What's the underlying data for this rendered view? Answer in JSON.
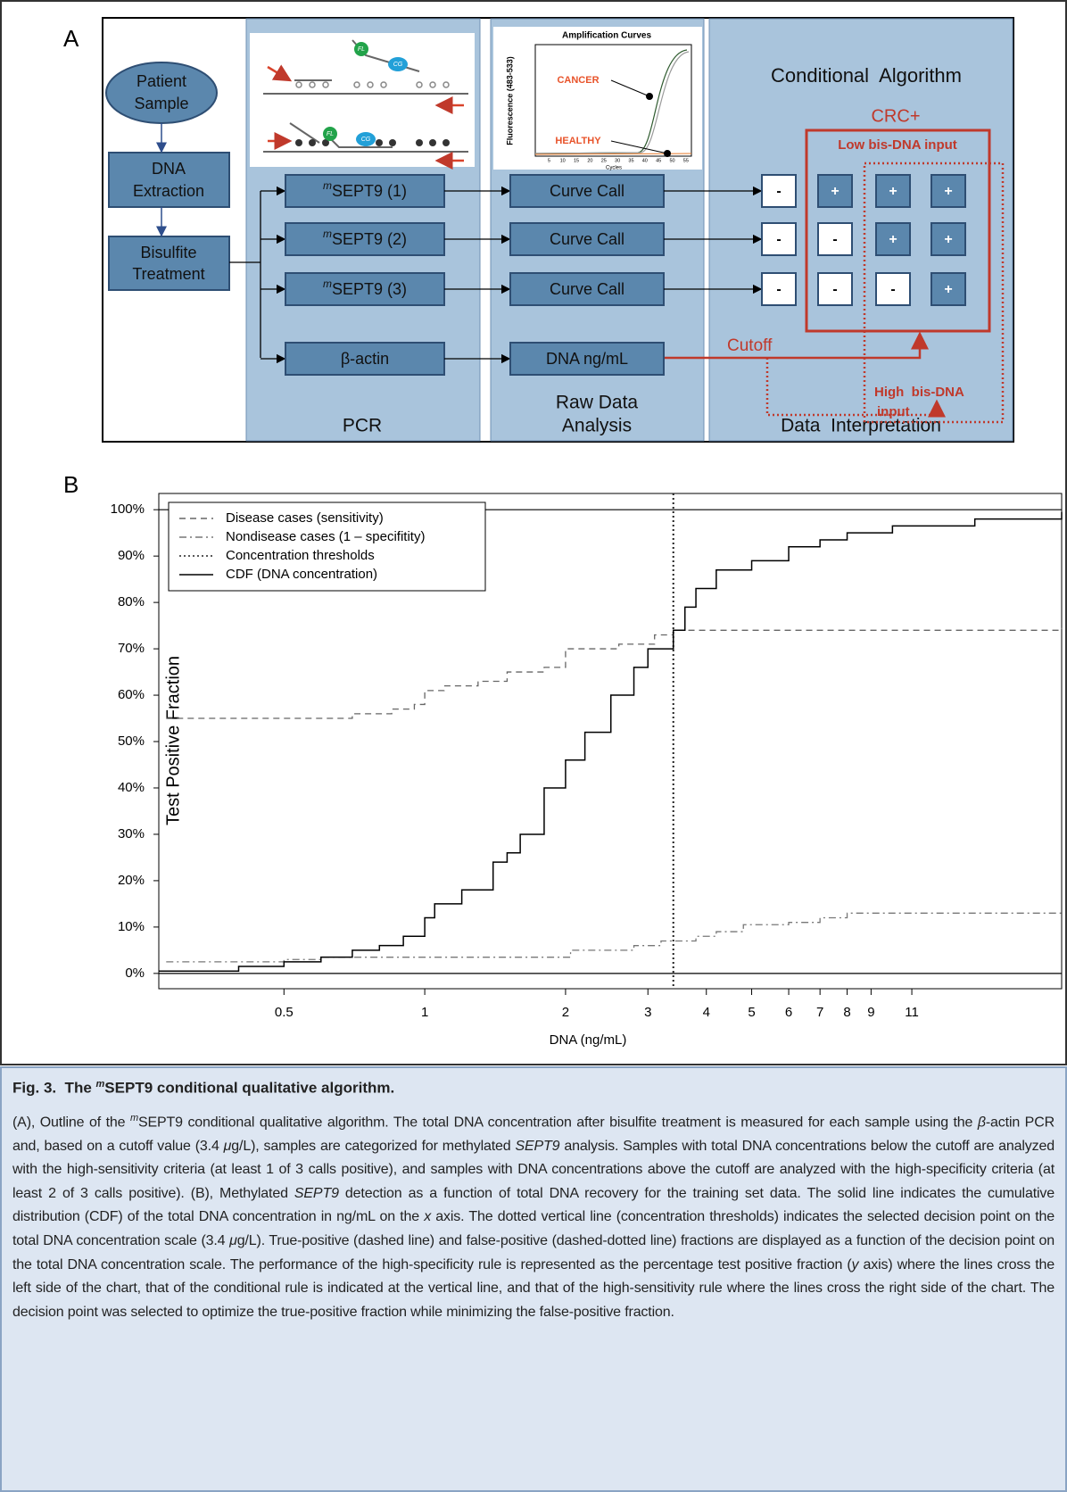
{
  "panel_a": {
    "label": "A",
    "patient": [
      "Patient",
      "Sample"
    ],
    "extraction": [
      "DNA",
      "Extraction"
    ],
    "bisulfite": [
      "Bisulfite",
      "Treatment"
    ],
    "assays": [
      {
        "prefix": "m",
        "name": "SEPT9 (1)"
      },
      {
        "prefix": "m",
        "name": "SEPT9 (2)"
      },
      {
        "prefix": "m",
        "name": "SEPT9 (3)"
      },
      {
        "prefix": "",
        "name": "β-actin"
      }
    ],
    "analyses": [
      "Curve Call",
      "Curve Call",
      "Curve Call",
      "DNA ng/mL"
    ],
    "cutoff": "Cutoff",
    "columns": {
      "pcr": [
        "PCR"
      ],
      "raw": [
        "Raw Data",
        "Analysis"
      ],
      "interp": [
        "Data  Interpretation"
      ]
    },
    "algorithm_title": "Conditional  Algorithm",
    "crc": "CRC+",
    "low_input": "Low bis-DNA input",
    "high_input": [
      "High  bis-DNA",
      "input"
    ],
    "grid": [
      [
        "-",
        "+",
        "+",
        "+"
      ],
      [
        "-",
        "-",
        "+",
        "+"
      ],
      [
        "-",
        "-",
        "-",
        "+"
      ]
    ],
    "probe_labels": [
      "FL",
      "CG",
      "FL",
      "CG"
    ],
    "amp_inset": {
      "title": "Amplification Curves",
      "ylabel": "Fluorescence (483-533)",
      "xlabel": "Cycles",
      "cancer": "CANCER",
      "healthy": "HEALTHY",
      "xticks": [
        5,
        10,
        15,
        20,
        25,
        30,
        35,
        40,
        45,
        50,
        55
      ]
    }
  },
  "chart_data": {
    "type": "line",
    "label": "B",
    "xlabel": "DNA (ng/mL)",
    "ylabel": "Test Positive Fraction",
    "xscale": "log",
    "xlim": [
      0.27,
      23
    ],
    "ylim": [
      -3.3,
      103.5
    ],
    "xticks": [
      0.5,
      1,
      2,
      3,
      4,
      5,
      6,
      7,
      8,
      9,
      11
    ],
    "yticks": [
      {
        "value": 0,
        "label": "0%"
      },
      {
        "value": 10,
        "label": "10%"
      },
      {
        "value": 20,
        "label": "20%"
      },
      {
        "value": 30,
        "label": "30%"
      },
      {
        "value": 40,
        "label": "40%"
      },
      {
        "value": 50,
        "label": "50%"
      },
      {
        "value": 60,
        "label": "60%"
      },
      {
        "value": 70,
        "label": "70%"
      },
      {
        "value": 80,
        "label": "80%"
      },
      {
        "value": 90,
        "label": "90%"
      },
      {
        "value": 100,
        "label": "100%"
      }
    ],
    "hlines": [
      0,
      100
    ],
    "threshold": {
      "name": "Concentration thresholds",
      "x": 3.4,
      "color": "#222222",
      "style": "dotted"
    },
    "legend": "upper left",
    "series": [
      {
        "name": "Disease cases (sensitivity)",
        "color": "#666666",
        "style": "dashed",
        "x": [
          0.28,
          0.7,
          0.85,
          0.95,
          1.0,
          1.1,
          1.3,
          1.5,
          1.8,
          2.0,
          2.6,
          3.1,
          3.4,
          23
        ],
        "values": [
          55,
          56,
          57,
          58,
          61,
          62,
          63,
          65,
          66,
          70,
          71,
          73,
          74,
          74.5
        ]
      },
      {
        "name": "Nondisease cases (1 – specifitity)",
        "color": "#777777",
        "style": "dashdot",
        "x": [
          0.28,
          0.5,
          0.6,
          2.0,
          2.05,
          2.8,
          3.2,
          3.8,
          4.2,
          4.8,
          6,
          7,
          8,
          23
        ],
        "values": [
          2.5,
          3,
          3.5,
          3.5,
          5,
          6,
          7,
          8,
          9,
          10.5,
          11,
          12,
          13,
          13.5
        ]
      },
      {
        "name": "CDF (DNA concentration)",
        "color": "#000000",
        "style": "solid",
        "x": [
          0.27,
          0.4,
          0.5,
          0.6,
          0.7,
          0.8,
          0.9,
          1.0,
          1.05,
          1.2,
          1.4,
          1.5,
          1.6,
          1.8,
          2.0,
          2.2,
          2.5,
          2.8,
          3.0,
          3.4,
          3.6,
          3.8,
          4.2,
          5,
          6,
          7,
          8,
          10,
          15,
          23
        ],
        "values": [
          0.5,
          1.5,
          2.5,
          3.5,
          5,
          6,
          8,
          12,
          15,
          18,
          24,
          26,
          30,
          40,
          46,
          52,
          60,
          66,
          70,
          74,
          79,
          83,
          87,
          89,
          92,
          93.5,
          95,
          96.5,
          98,
          99.5
        ]
      }
    ]
  },
  "caption": {
    "title": [
      {
        "text": "Fig. 3.  The "
      },
      {
        "text": "m",
        "sup": true
      },
      {
        "text": "SEPT9 conditional qualitative algorithm."
      }
    ],
    "body": [
      {
        "text": "(A), Outline of the "
      },
      {
        "text": "m",
        "sup": true
      },
      {
        "text": "SEPT9 conditional qualitative algorithm. The total DNA concentration after bisulfite treatment is measured for each sample using the "
      },
      {
        "text": "β",
        "italic": true
      },
      {
        "text": "-actin PCR and, based on a cutoff value (3.4 "
      },
      {
        "text": "μ",
        "italic": true
      },
      {
        "text": "g/L), samples are categorized for methylated "
      },
      {
        "text": "SEPT9",
        "italic": true
      },
      {
        "text": " analysis. Samples with total DNA concentrations below the cutoff are analyzed with the high-sensitivity criteria (at least 1 of 3 calls positive), and samples with DNA concentrations above the cutoff are analyzed with the high-specificity criteria (at least 2 of 3 calls positive). (B), Methylated "
      },
      {
        "text": "SEPT9",
        "italic": true
      },
      {
        "text": " detection as a function of total DNA recovery for the training set data. The solid line indicates the cumulative distribution (CDF) of the total DNA concentration in ng/mL on the "
      },
      {
        "text": "x",
        "italic": true
      },
      {
        "text": " axis. The dotted vertical line (concentration thresholds) indicates the selected decision point on the total DNA concentration scale (3.4 "
      },
      {
        "text": "μ",
        "italic": true
      },
      {
        "text": "g/L). True-positive (dashed line) and false-positive (dashed-dotted line) fractions are displayed as a function of the decision point on the total DNA concentration scale. The performance of the high-specificity rule is represented as the percentage test positive fraction ("
      },
      {
        "text": "y",
        "italic": true
      },
      {
        "text": " axis) where the lines cross the left side of the chart, that of the conditional rule is indicated at the vertical line, and that of the high-sensitivity rule where the lines cross the right side of the chart. The decision point was selected to optimize the true-positive fraction while minimizing the false-positive fraction."
      }
    ]
  }
}
